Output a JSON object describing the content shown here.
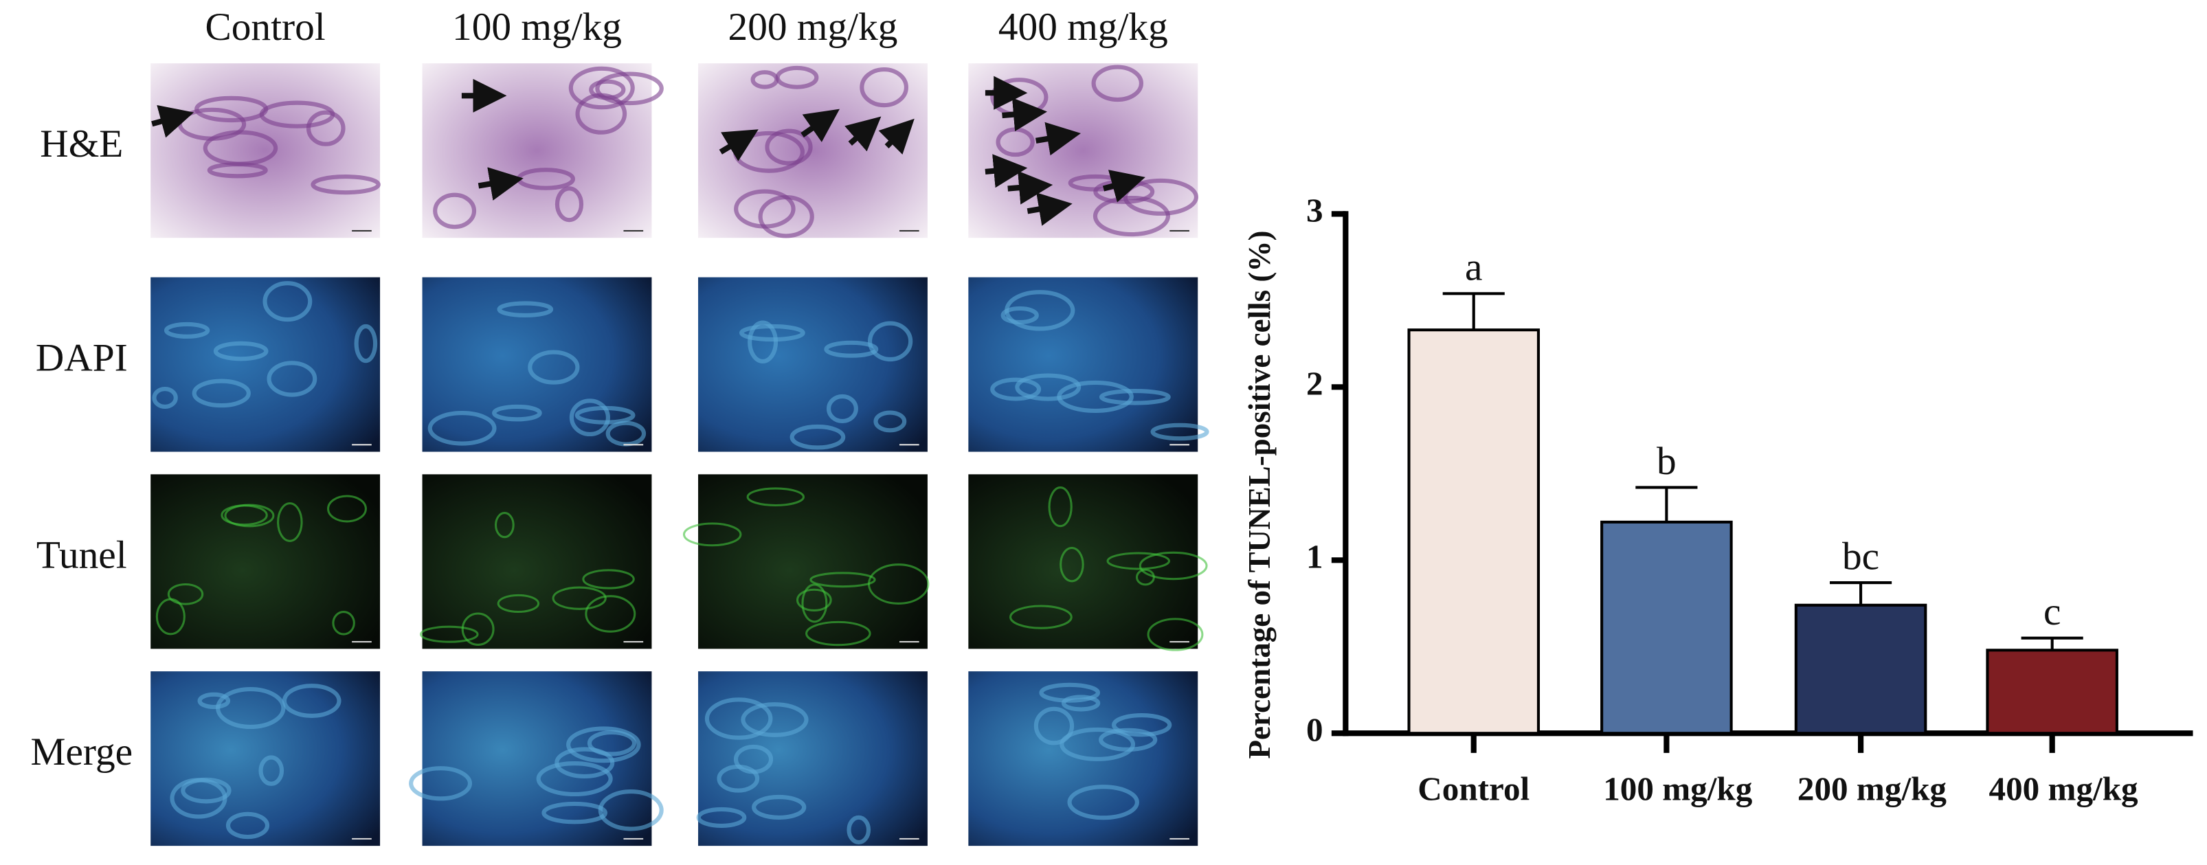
{
  "panels": {
    "columns": [
      "Control",
      "100 mg/kg",
      "200 mg/kg",
      "400 mg/kg"
    ],
    "rows": [
      "H&E",
      "DAPI",
      "Tunel",
      "Merge"
    ]
  },
  "chart_data": {
    "type": "bar",
    "y_label": "Percentage of TUNEL-positive cells (%)",
    "categories": [
      "Control",
      "100 mg/kg",
      "200 mg/kg",
      "400 mg/kg"
    ],
    "values": [
      2.33,
      1.22,
      0.74,
      0.48
    ],
    "errors": [
      0.21,
      0.2,
      0.13,
      0.07
    ],
    "colors": [
      "#f3e6df",
      "#50709f",
      "#27355e",
      "#7e1e22"
    ],
    "significance": [
      "a",
      "b",
      "bc",
      "c"
    ],
    "ylim": [
      0,
      3
    ],
    "yticks": [
      0,
      1,
      2,
      3
    ]
  }
}
